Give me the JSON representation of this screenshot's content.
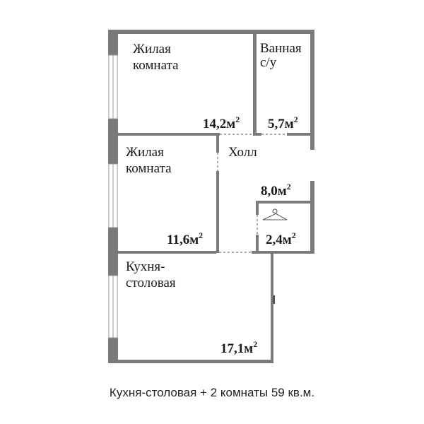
{
  "colors": {
    "wall": "#7a7a7a",
    "window_frame": "#9a9a9a",
    "text": "#1a1a1a",
    "background": "#ffffff"
  },
  "rooms": [
    {
      "id": "living-room-1",
      "name_lines": [
        "Жилая",
        "комната"
      ],
      "area_value": "14,2м",
      "area_sup": "2"
    },
    {
      "id": "bathroom",
      "name_lines": [
        "Ванная",
        "с/у"
      ],
      "area_value": "5,7м",
      "area_sup": "2"
    },
    {
      "id": "living-room-2",
      "name_lines": [
        "Жилая",
        "комната"
      ],
      "area_value": "11,6м",
      "area_sup": "2"
    },
    {
      "id": "hall",
      "name_lines": [
        "Холл"
      ],
      "area_value": "8,0м",
      "area_sup": "2"
    },
    {
      "id": "closet",
      "name_lines": [],
      "area_value": "2,4м",
      "area_sup": "2",
      "icon": "hanger-icon"
    },
    {
      "id": "kitchen-dining",
      "name_lines": [
        "Кухня-",
        "столовая"
      ],
      "area_value": "17,1м",
      "area_sup": "2"
    }
  ],
  "caption": "Кухня-столовая + 2 комнаты 59 кв.м."
}
